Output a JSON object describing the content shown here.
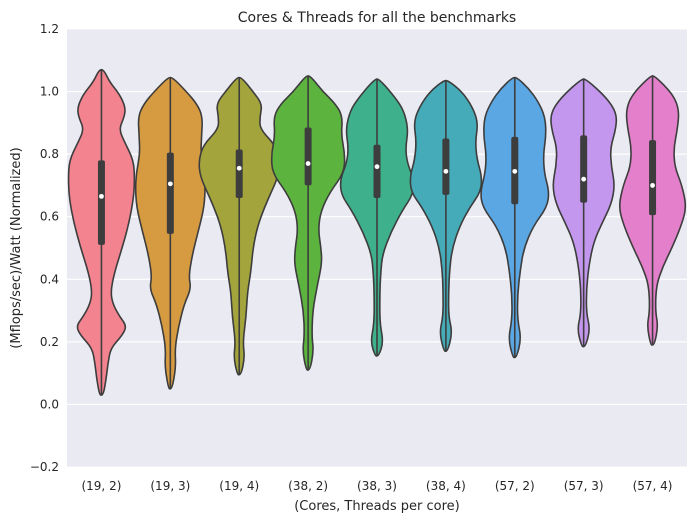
{
  "chart_data": {
    "type": "violin",
    "title": "Cores & Threads for all the benchmarks",
    "xlabel": "(Cores, Threads per core)",
    "ylabel": "(Mflops/sec)/Watt (Normalized)",
    "ylim": [
      -0.2,
      1.2
    ],
    "yticks": [
      -0.2,
      0.0,
      0.2,
      0.4,
      0.6,
      0.8,
      1.0,
      1.2
    ],
    "ytick_labels": [
      "−0.2",
      "0.0",
      "0.2",
      "0.4",
      "0.6",
      "0.8",
      "1.0",
      "1.2"
    ],
    "grid": true,
    "categories": [
      "(19, 2)",
      "(19, 3)",
      "(19, 4)",
      "(38, 2)",
      "(38, 3)",
      "(38, 4)",
      "(57, 2)",
      "(57, 3)",
      "(57, 4)"
    ],
    "colors": [
      "#f2838f",
      "#d69a40",
      "#a4a43c",
      "#5cb43f",
      "#3eb08c",
      "#45abb8",
      "#5ba7e3",
      "#c497ef",
      "#e47fcb"
    ],
    "series": [
      {
        "median": 0.665,
        "q1": 0.51,
        "q3": 0.78,
        "whisker_low": 0.03,
        "whisker_high": 1.07,
        "profile": [
          [
            0.03,
            0.004
          ],
          [
            0.08,
            0.01
          ],
          [
            0.13,
            0.014
          ],
          [
            0.18,
            0.02
          ],
          [
            0.22,
            0.045
          ],
          [
            0.25,
            0.055
          ],
          [
            0.28,
            0.04
          ],
          [
            0.32,
            0.025
          ],
          [
            0.36,
            0.02
          ],
          [
            0.42,
            0.028
          ],
          [
            0.5,
            0.045
          ],
          [
            0.58,
            0.06
          ],
          [
            0.66,
            0.07
          ],
          [
            0.72,
            0.072
          ],
          [
            0.78,
            0.07
          ],
          [
            0.84,
            0.05
          ],
          [
            0.88,
            0.038
          ],
          [
            0.92,
            0.05
          ],
          [
            0.95,
            0.052
          ],
          [
            0.99,
            0.04
          ],
          [
            1.03,
            0.018
          ],
          [
            1.07,
            0.005
          ]
        ]
      },
      {
        "median": 0.705,
        "q1": 0.545,
        "q3": 0.805,
        "whisker_low": 0.05,
        "whisker_high": 1.045,
        "profile": [
          [
            0.05,
            0.004
          ],
          [
            0.12,
            0.012
          ],
          [
            0.18,
            0.01
          ],
          [
            0.25,
            0.018
          ],
          [
            0.32,
            0.03
          ],
          [
            0.37,
            0.045
          ],
          [
            0.41,
            0.04
          ],
          [
            0.48,
            0.048
          ],
          [
            0.55,
            0.06
          ],
          [
            0.62,
            0.072
          ],
          [
            0.68,
            0.076
          ],
          [
            0.74,
            0.074
          ],
          [
            0.8,
            0.066
          ],
          [
            0.86,
            0.068
          ],
          [
            0.92,
            0.07
          ],
          [
            0.96,
            0.058
          ],
          [
            1.0,
            0.035
          ],
          [
            1.045,
            0.005
          ]
        ]
      },
      {
        "median": 0.755,
        "q1": 0.66,
        "q3": 0.815,
        "whisker_low": 0.095,
        "whisker_high": 1.045,
        "profile": [
          [
            0.095,
            0.004
          ],
          [
            0.15,
            0.012
          ],
          [
            0.2,
            0.008
          ],
          [
            0.28,
            0.015
          ],
          [
            0.36,
            0.018
          ],
          [
            0.42,
            0.025
          ],
          [
            0.5,
            0.03
          ],
          [
            0.57,
            0.04
          ],
          [
            0.63,
            0.055
          ],
          [
            0.68,
            0.07
          ],
          [
            0.73,
            0.085
          ],
          [
            0.78,
            0.088
          ],
          [
            0.83,
            0.078
          ],
          [
            0.88,
            0.045
          ],
          [
            0.92,
            0.045
          ],
          [
            0.96,
            0.05
          ],
          [
            1.0,
            0.03
          ],
          [
            1.045,
            0.005
          ]
        ]
      },
      {
        "median": 0.77,
        "q1": 0.7,
        "q3": 0.885,
        "whisker_low": 0.11,
        "whisker_high": 1.05,
        "profile": [
          [
            0.11,
            0.004
          ],
          [
            0.17,
            0.012
          ],
          [
            0.22,
            0.008
          ],
          [
            0.3,
            0.01
          ],
          [
            0.38,
            0.02
          ],
          [
            0.45,
            0.03
          ],
          [
            0.5,
            0.028
          ],
          [
            0.56,
            0.022
          ],
          [
            0.62,
            0.028
          ],
          [
            0.68,
            0.048
          ],
          [
            0.74,
            0.078
          ],
          [
            0.8,
            0.08
          ],
          [
            0.86,
            0.072
          ],
          [
            0.92,
            0.075
          ],
          [
            0.96,
            0.06
          ],
          [
            1.0,
            0.032
          ],
          [
            1.05,
            0.005
          ]
        ]
      },
      {
        "median": 0.76,
        "q1": 0.66,
        "q3": 0.83,
        "whisker_low": 0.155,
        "whisker_high": 1.04,
        "profile": [
          [
            0.155,
            0.004
          ],
          [
            0.2,
            0.014
          ],
          [
            0.26,
            0.006
          ],
          [
            0.35,
            0.006
          ],
          [
            0.42,
            0.008
          ],
          [
            0.48,
            0.012
          ],
          [
            0.55,
            0.03
          ],
          [
            0.62,
            0.055
          ],
          [
            0.67,
            0.078
          ],
          [
            0.72,
            0.08
          ],
          [
            0.77,
            0.066
          ],
          [
            0.82,
            0.062
          ],
          [
            0.88,
            0.068
          ],
          [
            0.94,
            0.058
          ],
          [
            0.98,
            0.04
          ],
          [
            1.04,
            0.005
          ]
        ]
      },
      {
        "median": 0.745,
        "q1": 0.67,
        "q3": 0.85,
        "whisker_low": 0.17,
        "whisker_high": 1.035,
        "profile": [
          [
            0.17,
            0.004
          ],
          [
            0.23,
            0.014
          ],
          [
            0.28,
            0.006
          ],
          [
            0.36,
            0.006
          ],
          [
            0.43,
            0.008
          ],
          [
            0.5,
            0.014
          ],
          [
            0.57,
            0.03
          ],
          [
            0.63,
            0.052
          ],
          [
            0.68,
            0.076
          ],
          [
            0.73,
            0.078
          ],
          [
            0.78,
            0.068
          ],
          [
            0.84,
            0.064
          ],
          [
            0.9,
            0.07
          ],
          [
            0.95,
            0.058
          ],
          [
            1.0,
            0.035
          ],
          [
            1.035,
            0.005
          ]
        ]
      },
      {
        "median": 0.745,
        "q1": 0.64,
        "q3": 0.855,
        "whisker_low": 0.15,
        "whisker_high": 1.045,
        "profile": [
          [
            0.15,
            0.004
          ],
          [
            0.21,
            0.014
          ],
          [
            0.27,
            0.006
          ],
          [
            0.35,
            0.006
          ],
          [
            0.43,
            0.012
          ],
          [
            0.5,
            0.02
          ],
          [
            0.57,
            0.04
          ],
          [
            0.63,
            0.07
          ],
          [
            0.68,
            0.075
          ],
          [
            0.74,
            0.064
          ],
          [
            0.8,
            0.062
          ],
          [
            0.86,
            0.068
          ],
          [
            0.92,
            0.066
          ],
          [
            0.97,
            0.05
          ],
          [
            1.01,
            0.03
          ],
          [
            1.045,
            0.005
          ]
        ]
      },
      {
        "median": 0.72,
        "q1": 0.645,
        "q3": 0.86,
        "whisker_low": 0.185,
        "whisker_high": 1.04,
        "profile": [
          [
            0.185,
            0.004
          ],
          [
            0.24,
            0.014
          ],
          [
            0.29,
            0.006
          ],
          [
            0.37,
            0.006
          ],
          [
            0.45,
            0.012
          ],
          [
            0.52,
            0.022
          ],
          [
            0.58,
            0.04
          ],
          [
            0.64,
            0.06
          ],
          [
            0.7,
            0.068
          ],
          [
            0.76,
            0.06
          ],
          [
            0.82,
            0.058
          ],
          [
            0.88,
            0.07
          ],
          [
            0.93,
            0.072
          ],
          [
            0.98,
            0.05
          ],
          [
            1.04,
            0.005
          ]
        ]
      },
      {
        "median": 0.7,
        "q1": 0.605,
        "q3": 0.845,
        "whisker_low": 0.19,
        "whisker_high": 1.05,
        "profile": [
          [
            0.19,
            0.004
          ],
          [
            0.25,
            0.012
          ],
          [
            0.3,
            0.006
          ],
          [
            0.38,
            0.008
          ],
          [
            0.44,
            0.022
          ],
          [
            0.5,
            0.042
          ],
          [
            0.57,
            0.062
          ],
          [
            0.63,
            0.074
          ],
          [
            0.7,
            0.064
          ],
          [
            0.76,
            0.048
          ],
          [
            0.82,
            0.046
          ],
          [
            0.88,
            0.054
          ],
          [
            0.94,
            0.058
          ],
          [
            0.99,
            0.045
          ],
          [
            1.05,
            0.005
          ]
        ]
      }
    ]
  }
}
